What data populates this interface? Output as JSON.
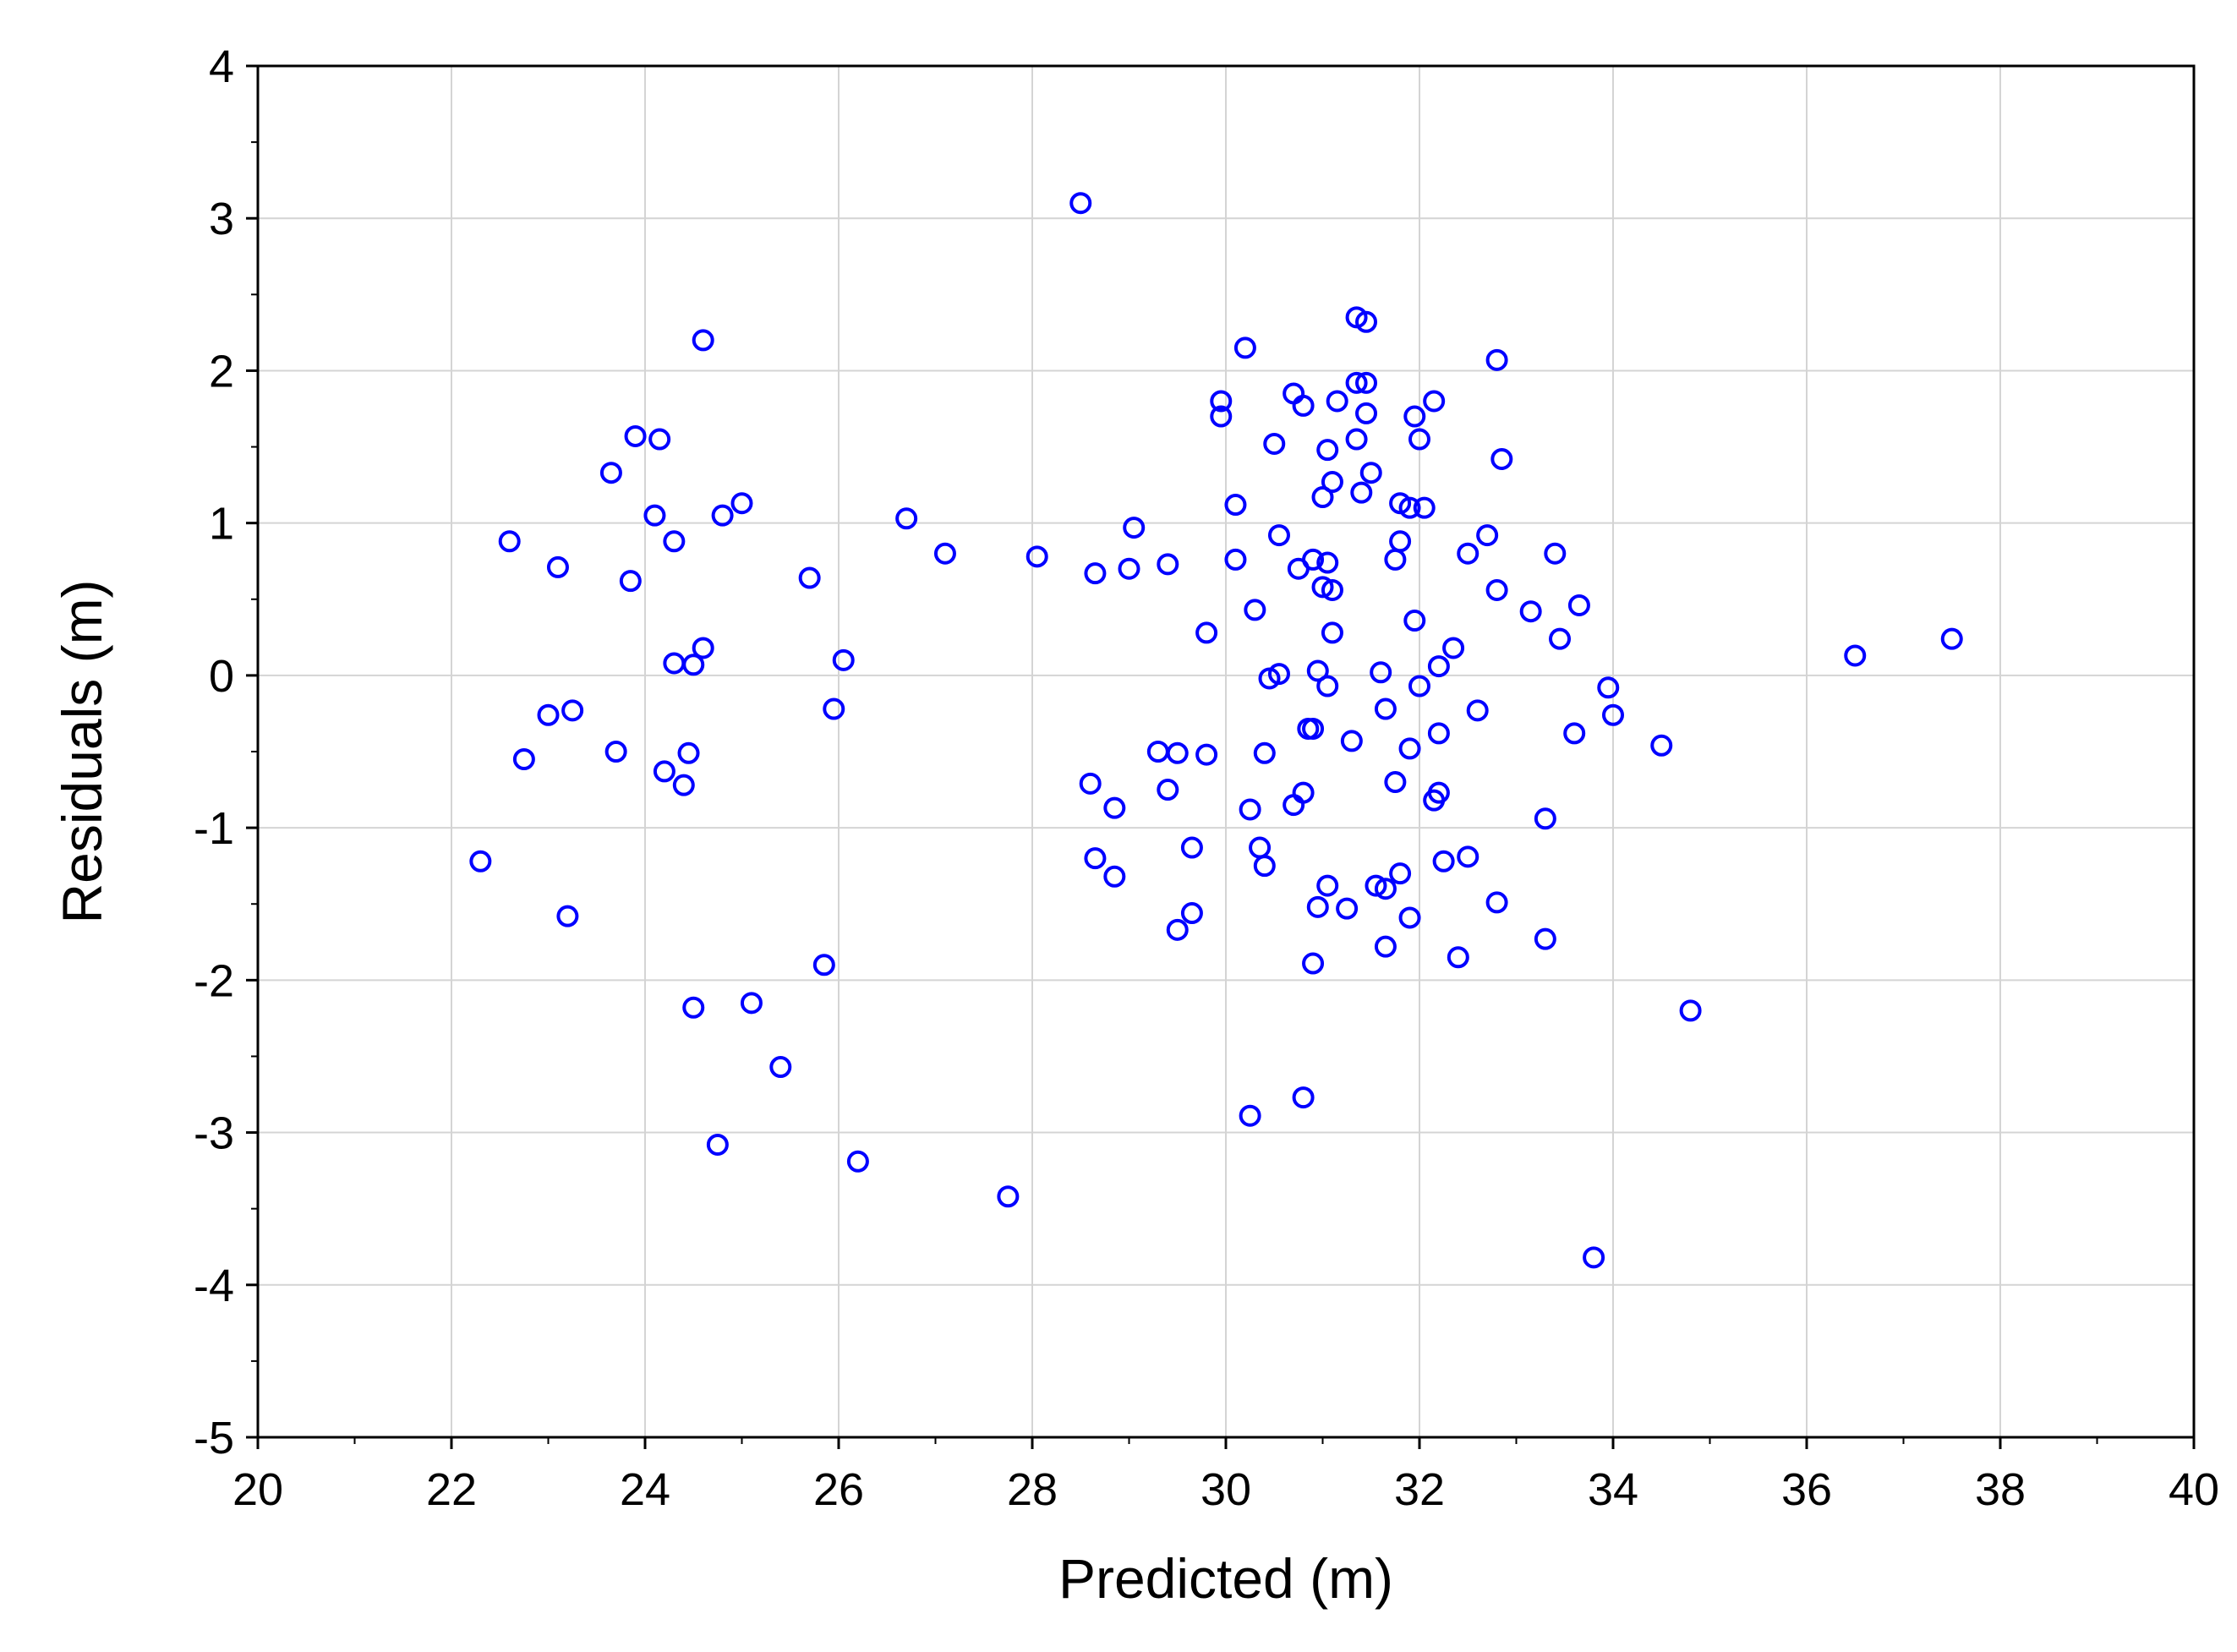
{
  "chart_data": {
    "type": "scatter",
    "xlabel": "Predicted (m)",
    "ylabel": "Residuals (m)",
    "xlim": [
      20,
      40
    ],
    "ylim": [
      -5,
      4
    ],
    "x_ticks": [
      20,
      22,
      24,
      26,
      28,
      30,
      32,
      34,
      36,
      38,
      40
    ],
    "y_ticks": [
      -5,
      -4,
      -3,
      -2,
      -1,
      0,
      1,
      2,
      3,
      4
    ],
    "grid": true,
    "marker": "open-circle",
    "marker_color": "#0000ff",
    "points": [
      [
        28.5,
        3.1
      ],
      [
        24.6,
        2.2
      ],
      [
        30.2,
        2.15
      ],
      [
        31.35,
        2.35
      ],
      [
        31.45,
        2.32
      ],
      [
        32.8,
        2.07
      ],
      [
        31.35,
        1.92
      ],
      [
        31.45,
        1.92
      ],
      [
        30.7,
        1.85
      ],
      [
        29.95,
        1.8
      ],
      [
        31.15,
        1.8
      ],
      [
        32.15,
        1.8
      ],
      [
        30.8,
        1.77
      ],
      [
        29.95,
        1.7
      ],
      [
        31.45,
        1.72
      ],
      [
        31.95,
        1.7
      ],
      [
        23.9,
        1.57
      ],
      [
        24.15,
        1.55
      ],
      [
        31.35,
        1.55
      ],
      [
        32.0,
        1.55
      ],
      [
        30.5,
        1.52
      ],
      [
        31.05,
        1.48
      ],
      [
        32.85,
        1.42
      ],
      [
        23.65,
        1.33
      ],
      [
        31.5,
        1.33
      ],
      [
        31.1,
        1.27
      ],
      [
        31.4,
        1.2
      ],
      [
        31.0,
        1.17
      ],
      [
        25.0,
        1.13
      ],
      [
        31.8,
        1.13
      ],
      [
        30.1,
        1.12
      ],
      [
        31.9,
        1.1
      ],
      [
        32.05,
        1.1
      ],
      [
        24.1,
        1.05
      ],
      [
        24.8,
        1.05
      ],
      [
        26.7,
        1.03
      ],
      [
        29.05,
        0.97
      ],
      [
        30.55,
        0.92
      ],
      [
        32.7,
        0.92
      ],
      [
        22.6,
        0.88
      ],
      [
        24.3,
        0.88
      ],
      [
        31.8,
        0.88
      ],
      [
        27.1,
        0.8
      ],
      [
        28.05,
        0.78
      ],
      [
        33.4,
        0.8
      ],
      [
        32.5,
        0.8
      ],
      [
        30.1,
        0.76
      ],
      [
        30.9,
        0.76
      ],
      [
        31.05,
        0.74
      ],
      [
        31.75,
        0.76
      ],
      [
        29.4,
        0.73
      ],
      [
        23.1,
        0.71
      ],
      [
        30.75,
        0.7
      ],
      [
        29.0,
        0.7
      ],
      [
        28.65,
        0.67
      ],
      [
        25.7,
        0.64
      ],
      [
        23.85,
        0.62
      ],
      [
        31.0,
        0.58
      ],
      [
        31.1,
        0.56
      ],
      [
        32.8,
        0.56
      ],
      [
        33.65,
        0.46
      ],
      [
        30.3,
        0.43
      ],
      [
        33.15,
        0.42
      ],
      [
        31.95,
        0.36
      ],
      [
        29.8,
        0.28
      ],
      [
        31.1,
        0.28
      ],
      [
        33.45,
        0.24
      ],
      [
        37.5,
        0.24
      ],
      [
        24.6,
        0.18
      ],
      [
        32.35,
        0.18
      ],
      [
        36.5,
        0.13
      ],
      [
        26.05,
        0.1
      ],
      [
        24.3,
        0.08
      ],
      [
        24.5,
        0.07
      ],
      [
        32.2,
        0.06
      ],
      [
        30.95,
        0.03
      ],
      [
        31.6,
        0.02
      ],
      [
        30.55,
        0.01
      ],
      [
        30.45,
        -0.02
      ],
      [
        31.05,
        -0.07
      ],
      [
        32.0,
        -0.07
      ],
      [
        33.95,
        -0.08
      ],
      [
        25.95,
        -0.22
      ],
      [
        31.65,
        -0.22
      ],
      [
        23.25,
        -0.23
      ],
      [
        32.6,
        -0.23
      ],
      [
        23.0,
        -0.26
      ],
      [
        34.0,
        -0.26
      ],
      [
        30.85,
        -0.35
      ],
      [
        30.9,
        -0.35
      ],
      [
        32.2,
        -0.38
      ],
      [
        33.6,
        -0.38
      ],
      [
        31.3,
        -0.43
      ],
      [
        34.5,
        -0.46
      ],
      [
        31.9,
        -0.48
      ],
      [
        23.7,
        -0.5
      ],
      [
        29.3,
        -0.5
      ],
      [
        24.45,
        -0.51
      ],
      [
        29.5,
        -0.51
      ],
      [
        30.4,
        -0.51
      ],
      [
        29.8,
        -0.52
      ],
      [
        22.75,
        -0.55
      ],
      [
        24.2,
        -0.63
      ],
      [
        31.75,
        -0.7
      ],
      [
        28.6,
        -0.71
      ],
      [
        24.4,
        -0.72
      ],
      [
        29.4,
        -0.75
      ],
      [
        30.8,
        -0.77
      ],
      [
        32.2,
        -0.77
      ],
      [
        32.15,
        -0.82
      ],
      [
        30.7,
        -0.85
      ],
      [
        28.85,
        -0.87
      ],
      [
        30.25,
        -0.88
      ],
      [
        33.3,
        -0.94
      ],
      [
        29.65,
        -1.13
      ],
      [
        30.35,
        -1.13
      ],
      [
        28.65,
        -1.2
      ],
      [
        32.5,
        -1.19
      ],
      [
        22.3,
        -1.22
      ],
      [
        32.25,
        -1.22
      ],
      [
        30.4,
        -1.25
      ],
      [
        31.8,
        -1.3
      ],
      [
        28.85,
        -1.32
      ],
      [
        31.05,
        -1.38
      ],
      [
        31.55,
        -1.38
      ],
      [
        31.65,
        -1.4
      ],
      [
        32.8,
        -1.49
      ],
      [
        30.95,
        -1.52
      ],
      [
        31.25,
        -1.53
      ],
      [
        29.65,
        -1.56
      ],
      [
        23.2,
        -1.58
      ],
      [
        31.9,
        -1.59
      ],
      [
        29.5,
        -1.67
      ],
      [
        33.3,
        -1.73
      ],
      [
        31.65,
        -1.78
      ],
      [
        32.4,
        -1.85
      ],
      [
        30.9,
        -1.89
      ],
      [
        25.85,
        -1.9
      ],
      [
        25.1,
        -2.15
      ],
      [
        24.5,
        -2.18
      ],
      [
        34.8,
        -2.2
      ],
      [
        25.4,
        -2.57
      ],
      [
        30.8,
        -2.77
      ],
      [
        30.25,
        -2.89
      ],
      [
        24.75,
        -3.08
      ],
      [
        26.2,
        -3.19
      ],
      [
        27.75,
        -3.42
      ],
      [
        33.8,
        -3.82
      ]
    ]
  }
}
